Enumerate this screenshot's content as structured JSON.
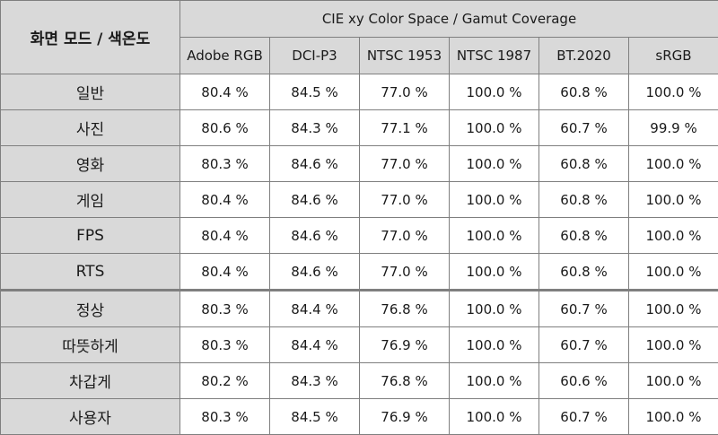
{
  "table": {
    "corner_label": "화면 모드 / 색온도",
    "group_header": "CIE xy Color Space / Gamut Coverage",
    "columns": [
      "Adobe RGB",
      "DCI-P3",
      "NTSC 1953",
      "NTSC 1987",
      "BT.2020",
      "sRGB"
    ],
    "rows": [
      {
        "label": "일반",
        "values": [
          "80.4 %",
          "84.5 %",
          "77.0 %",
          "100.0 %",
          "60.8 %",
          "100.0 %"
        ]
      },
      {
        "label": "사진",
        "values": [
          "80.6 %",
          "84.3 %",
          "77.1 %",
          "100.0 %",
          "60.7 %",
          "99.9 %"
        ]
      },
      {
        "label": "영화",
        "values": [
          "80.3 %",
          "84.6 %",
          "77.0 %",
          "100.0 %",
          "60.8 %",
          "100.0 %"
        ]
      },
      {
        "label": "게임",
        "values": [
          "80.4 %",
          "84.6 %",
          "77.0 %",
          "100.0 %",
          "60.8 %",
          "100.0 %"
        ]
      },
      {
        "label": "FPS",
        "values": [
          "80.4 %",
          "84.6 %",
          "77.0 %",
          "100.0 %",
          "60.8 %",
          "100.0 %"
        ]
      },
      {
        "label": "RTS",
        "values": [
          "80.4 %",
          "84.6 %",
          "77.0 %",
          "100.0 %",
          "60.8 %",
          "100.0 %"
        ]
      },
      {
        "label": "정상",
        "values": [
          "80.3 %",
          "84.4 %",
          "76.8 %",
          "100.0 %",
          "60.7 %",
          "100.0 %"
        ]
      },
      {
        "label": "따뜻하게",
        "values": [
          "80.3 %",
          "84.4 %",
          "76.9 %",
          "100.0 %",
          "60.7 %",
          "100.0 %"
        ]
      },
      {
        "label": "차갑게",
        "values": [
          "80.2 %",
          "84.3 %",
          "76.8 %",
          "100.0 %",
          "60.6 %",
          "100.0 %"
        ]
      },
      {
        "label": "사용자",
        "values": [
          "80.3 %",
          "84.5 %",
          "76.9 %",
          "100.0 %",
          "60.7 %",
          "100.0 %"
        ]
      }
    ]
  },
  "colors": {
    "header_bg": "#d9d9d9",
    "cell_bg": "#ffffff",
    "border": "#7f7f7f"
  }
}
